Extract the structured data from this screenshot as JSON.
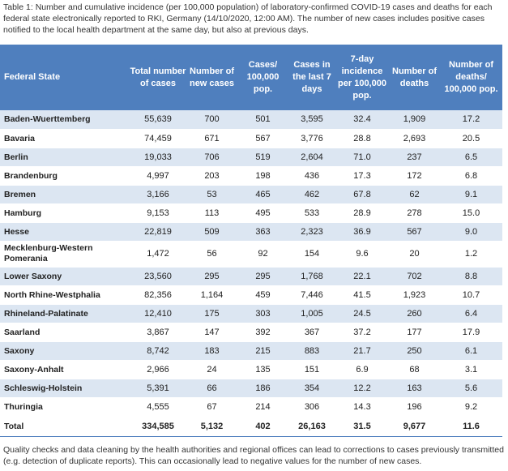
{
  "caption": "Table 1: Number and cumulative incidence (per 100,000 population) of laboratory-confirmed COVID-19 cases and deaths for each federal state electronically reported to RKI, Germany (14/10/2020, 12:00 AM). The number of new cases includes positive cases notified to the local health department at the same day, but also at previous days.",
  "headers": [
    "Federal State",
    "Total number of cases",
    "Number of new cases",
    "Cases/ 100,000 pop.",
    "Cases in the last 7 days",
    "7-day incidence per 100,000 pop.",
    "Number of deaths",
    "Number of deaths/ 100,000 pop."
  ],
  "rows": [
    {
      "state": "Baden-Wuerttemberg",
      "total": "55,639",
      "new": "700",
      "per100k": "501",
      "last7": "3,595",
      "inc7": "32.4",
      "deaths": "1,909",
      "deaths100k": "17.2"
    },
    {
      "state": "Bavaria",
      "total": "74,459",
      "new": "671",
      "per100k": "567",
      "last7": "3,776",
      "inc7": "28.8",
      "deaths": "2,693",
      "deaths100k": "20.5"
    },
    {
      "state": "Berlin",
      "total": "19,033",
      "new": "706",
      "per100k": "519",
      "last7": "2,604",
      "inc7": "71.0",
      "deaths": "237",
      "deaths100k": "6.5"
    },
    {
      "state": "Brandenburg",
      "total": "4,997",
      "new": "203",
      "per100k": "198",
      "last7": "436",
      "inc7": "17.3",
      "deaths": "172",
      "deaths100k": "6.8"
    },
    {
      "state": "Bremen",
      "total": "3,166",
      "new": "53",
      "per100k": "465",
      "last7": "462",
      "inc7": "67.8",
      "deaths": "62",
      "deaths100k": "9.1"
    },
    {
      "state": "Hamburg",
      "total": "9,153",
      "new": "113",
      "per100k": "495",
      "last7": "533",
      "inc7": "28.9",
      "deaths": "278",
      "deaths100k": "15.0"
    },
    {
      "state": "Hesse",
      "total": "22,819",
      "new": "509",
      "per100k": "363",
      "last7": "2,323",
      "inc7": "36.9",
      "deaths": "567",
      "deaths100k": "9.0"
    },
    {
      "state": "Mecklenburg-Western Pomerania",
      "total": "1,472",
      "new": "56",
      "per100k": "92",
      "last7": "154",
      "inc7": "9.6",
      "deaths": "20",
      "deaths100k": "1.2"
    },
    {
      "state": "Lower Saxony",
      "total": "23,560",
      "new": "295",
      "per100k": "295",
      "last7": "1,768",
      "inc7": "22.1",
      "deaths": "702",
      "deaths100k": "8.8"
    },
    {
      "state": "North Rhine-Westphalia",
      "total": "82,356",
      "new": "1,164",
      "per100k": "459",
      "last7": "7,446",
      "inc7": "41.5",
      "deaths": "1,923",
      "deaths100k": "10.7"
    },
    {
      "state": "Rhineland-Palatinate",
      "total": "12,410",
      "new": "175",
      "per100k": "303",
      "last7": "1,005",
      "inc7": "24.5",
      "deaths": "260",
      "deaths100k": "6.4"
    },
    {
      "state": "Saarland",
      "total": "3,867",
      "new": "147",
      "per100k": "392",
      "last7": "367",
      "inc7": "37.2",
      "deaths": "177",
      "deaths100k": "17.9"
    },
    {
      "state": "Saxony",
      "total": "8,742",
      "new": "183",
      "per100k": "215",
      "last7": "883",
      "inc7": "21.7",
      "deaths": "250",
      "deaths100k": "6.1"
    },
    {
      "state": "Saxony-Anhalt",
      "total": "2,966",
      "new": "24",
      "per100k": "135",
      "last7": "151",
      "inc7": "6.9",
      "deaths": "68",
      "deaths100k": "3.1"
    },
    {
      "state": "Schleswig-Holstein",
      "total": "5,391",
      "new": "66",
      "per100k": "186",
      "last7": "354",
      "inc7": "12.2",
      "deaths": "163",
      "deaths100k": "5.6"
    },
    {
      "state": "Thuringia",
      "total": "4,555",
      "new": "67",
      "per100k": "214",
      "last7": "306",
      "inc7": "14.3",
      "deaths": "196",
      "deaths100k": "9.2"
    }
  ],
  "total": {
    "state": "Total",
    "total": "334,585",
    "new": "5,132",
    "per100k": "402",
    "last7": "26,163",
    "inc7": "31.5",
    "deaths": "9,677",
    "deaths100k": "11.6"
  },
  "footnote": "Quality checks and data cleaning by the health authorities and regional offices can lead to corrections to cases previously transmitted (e.g. detection of duplicate reports). This can occasionally lead to negative values for the number of new cases."
}
